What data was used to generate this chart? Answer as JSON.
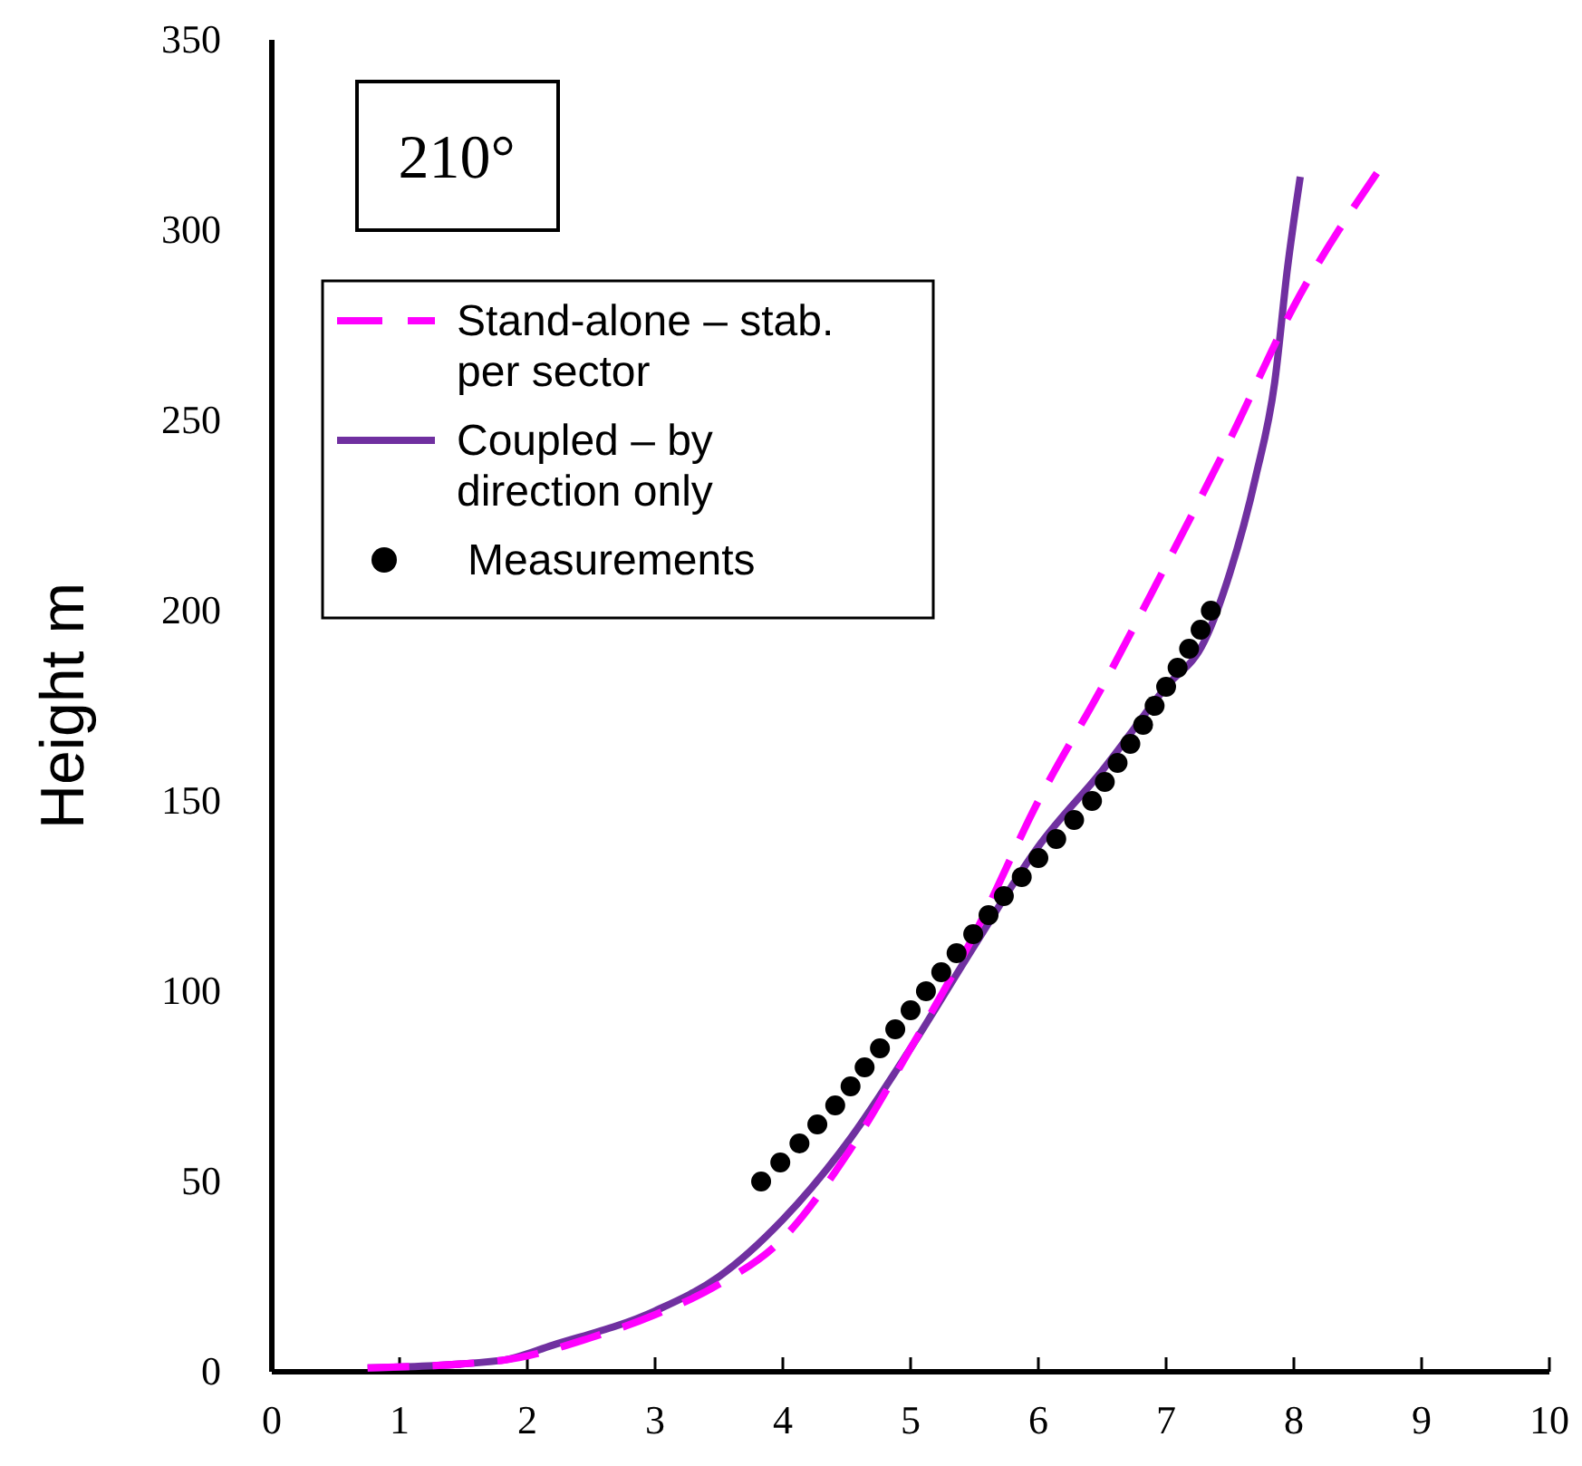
{
  "chart_data": {
    "type": "line",
    "ylabel": "Height m",
    "annotations": [
      "210°"
    ],
    "legend": "top left",
    "grid": false,
    "xlim": [
      0,
      10
    ],
    "xticks": [
      0,
      1,
      2,
      3,
      4,
      5,
      6,
      7,
      8,
      9,
      10
    ],
    "ylim": [
      0,
      350
    ],
    "yticks": [
      0,
      50,
      100,
      150,
      200,
      250,
      300,
      350
    ],
    "series": [
      {
        "name": "Stand-alone – stab. per sector",
        "color": "#ff00ff",
        "line_style": "dashed",
        "marker": "none",
        "x": [
          0.75,
          1.8,
          2.5,
          3,
          3.5,
          4,
          4.5,
          5,
          5.5,
          6,
          6.5,
          7,
          7.5,
          8,
          8.65
        ],
        "values": [
          1,
          3,
          9,
          15,
          23,
          35,
          57,
          85,
          115,
          150,
          180,
          212,
          245,
          280,
          315
        ]
      },
      {
        "name": "Coupled – by direction only",
        "color": "#7030a0",
        "line_style": "solid",
        "marker": "none",
        "x": [
          0.75,
          1.8,
          2.2,
          3,
          3.5,
          4,
          4.5,
          5,
          5.5,
          6,
          6.5,
          7,
          7.3,
          7.5,
          7.7,
          7.85,
          7.95,
          8.05
        ],
        "values": [
          1,
          3,
          7,
          16,
          25,
          40,
          60,
          85,
          112,
          138,
          158,
          180,
          192,
          210,
          235,
          260,
          290,
          314
        ]
      },
      {
        "name": "Measurements",
        "type": "scatter",
        "color": "#000000",
        "marker": "circle",
        "x": [
          3.83,
          3.98,
          4.13,
          4.27,
          4.41,
          4.53,
          4.64,
          4.76,
          4.88,
          5.0,
          5.12,
          5.24,
          5.36,
          5.49,
          5.61,
          5.73,
          5.87,
          6.0,
          6.14,
          6.28,
          6.42,
          6.52,
          6.62,
          6.72,
          6.82,
          6.91,
          7.0,
          7.09,
          7.18,
          7.27,
          7.35
        ],
        "values": [
          50,
          55,
          60,
          65,
          70,
          75,
          80,
          85,
          90,
          95,
          100,
          105,
          110,
          115,
          120,
          125,
          130,
          135,
          140,
          145,
          150,
          155,
          160,
          165,
          170,
          175,
          180,
          185,
          190,
          195,
          200
        ]
      }
    ]
  }
}
